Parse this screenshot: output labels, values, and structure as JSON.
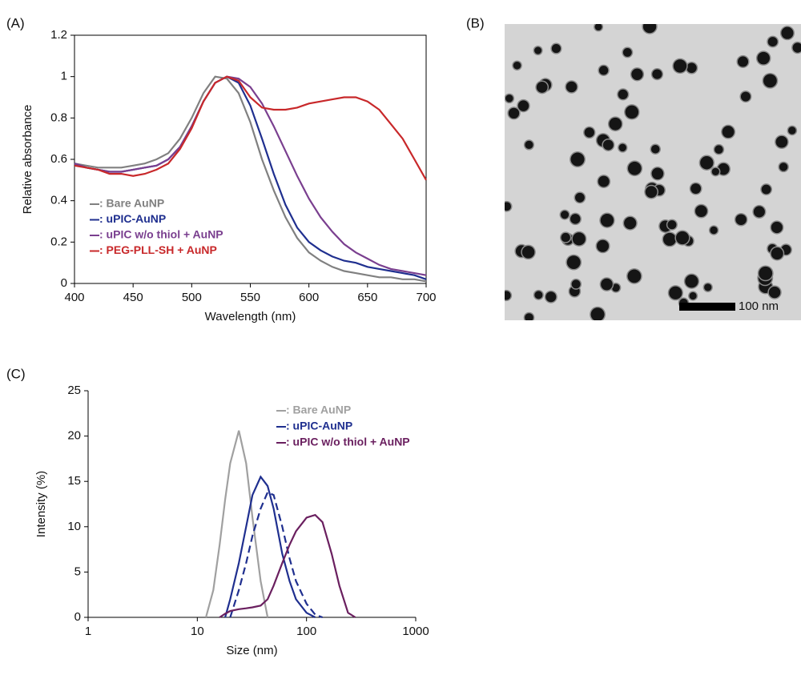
{
  "chart_data": [
    {
      "type": "line",
      "panel_label": "(A)",
      "xlabel": "Wavelength (nm)",
      "ylabel": "Relative absorbance",
      "x": [
        400,
        410,
        420,
        430,
        440,
        450,
        460,
        470,
        480,
        490,
        500,
        510,
        520,
        530,
        540,
        550,
        560,
        570,
        580,
        590,
        600,
        610,
        620,
        630,
        640,
        650,
        660,
        670,
        680,
        690,
        700
      ],
      "xlim": [
        400,
        700
      ],
      "xticks": [
        400,
        450,
        500,
        550,
        600,
        650,
        700
      ],
      "ylim": [
        0,
        1.2
      ],
      "yticks": [
        0,
        0.2,
        0.4,
        0.6,
        0.8,
        1,
        1.2
      ],
      "legend": "lower left",
      "series": [
        {
          "name": ": Bare AuNP",
          "color": "#808080",
          "values": [
            0.58,
            0.57,
            0.56,
            0.56,
            0.56,
            0.57,
            0.58,
            0.6,
            0.63,
            0.7,
            0.8,
            0.92,
            1.0,
            0.99,
            0.92,
            0.78,
            0.6,
            0.45,
            0.32,
            0.22,
            0.15,
            0.11,
            0.08,
            0.06,
            0.05,
            0.04,
            0.03,
            0.03,
            0.02,
            0.02,
            0.01
          ]
        },
        {
          "name": ": uPIC-AuNP",
          "color": "#1f2f8f",
          "values": [
            0.58,
            0.56,
            0.55,
            0.54,
            0.54,
            0.55,
            0.56,
            0.57,
            0.6,
            0.66,
            0.76,
            0.88,
            0.97,
            1.0,
            0.97,
            0.86,
            0.7,
            0.53,
            0.38,
            0.27,
            0.2,
            0.16,
            0.13,
            0.11,
            0.1,
            0.08,
            0.07,
            0.06,
            0.05,
            0.04,
            0.02
          ]
        },
        {
          "name": ": uPIC w/o thiol + AuNP",
          "color": "#7a3f8f",
          "values": [
            0.58,
            0.56,
            0.55,
            0.54,
            0.54,
            0.55,
            0.56,
            0.57,
            0.6,
            0.66,
            0.76,
            0.88,
            0.97,
            1.0,
            0.99,
            0.95,
            0.87,
            0.76,
            0.64,
            0.52,
            0.41,
            0.32,
            0.25,
            0.19,
            0.15,
            0.12,
            0.09,
            0.07,
            0.06,
            0.05,
            0.04
          ]
        },
        {
          "name": ": PEG-PLL-SH + AuNP",
          "color": "#c8282a",
          "values": [
            0.57,
            0.56,
            0.55,
            0.53,
            0.53,
            0.52,
            0.53,
            0.55,
            0.58,
            0.65,
            0.75,
            0.88,
            0.97,
            1.0,
            0.98,
            0.9,
            0.85,
            0.84,
            0.84,
            0.85,
            0.87,
            0.88,
            0.89,
            0.9,
            0.9,
            0.88,
            0.84,
            0.77,
            0.7,
            0.6,
            0.5
          ]
        }
      ]
    },
    {
      "type": "line",
      "panel_label": "(C)",
      "xlabel": "Size (nm)",
      "ylabel": "Intensity (%)",
      "x": [
        10,
        12,
        14,
        16,
        18,
        20,
        24,
        28,
        32,
        38,
        44,
        50,
        60,
        70,
        80,
        100,
        120,
        140,
        170,
        200,
        240,
        280
      ],
      "xscale": "log",
      "xlim": [
        1,
        1000
      ],
      "xticks": [
        1,
        10,
        100,
        1000
      ],
      "ylim": [
        0,
        25
      ],
      "yticks": [
        0,
        5,
        10,
        15,
        20,
        25
      ],
      "legend": "upper right",
      "series": [
        {
          "name": ": Bare AuNP",
          "color": "#a0a0a0",
          "values": [
            null,
            0,
            3,
            8,
            13,
            17,
            20.6,
            17,
            11,
            4,
            0,
            null,
            null,
            null,
            null,
            null,
            null,
            null,
            null,
            null,
            null,
            null
          ]
        },
        {
          "name": ": uPIC-AuNP",
          "color": "#1f2f8f",
          "values": [
            null,
            null,
            null,
            null,
            0,
            2,
            6,
            10,
            13.5,
            15.5,
            14.5,
            12,
            7,
            4,
            2,
            0.5,
            0,
            null,
            null,
            null,
            null,
            null
          ]
        },
        {
          "color": "#1f2f8f",
          "dash": true,
          "values": [
            null,
            null,
            null,
            null,
            null,
            0,
            3,
            6,
            9,
            12,
            13.8,
            13.5,
            10,
            6.5,
            4,
            1.5,
            0.3,
            0,
            null,
            null,
            null,
            null
          ]
        },
        {
          "name": ": uPIC w/o thiol + AuNP",
          "color": "#6a1f5f",
          "values": [
            null,
            null,
            null,
            0,
            0.4,
            0.7,
            0.9,
            1.0,
            1.1,
            1.3,
            2,
            3.5,
            6,
            8,
            9.5,
            11,
            11.3,
            10.5,
            7,
            3.5,
            0.5,
            0
          ]
        }
      ]
    }
  ],
  "image_panel": {
    "label": "(B)",
    "scale_bar": "100 nm"
  }
}
